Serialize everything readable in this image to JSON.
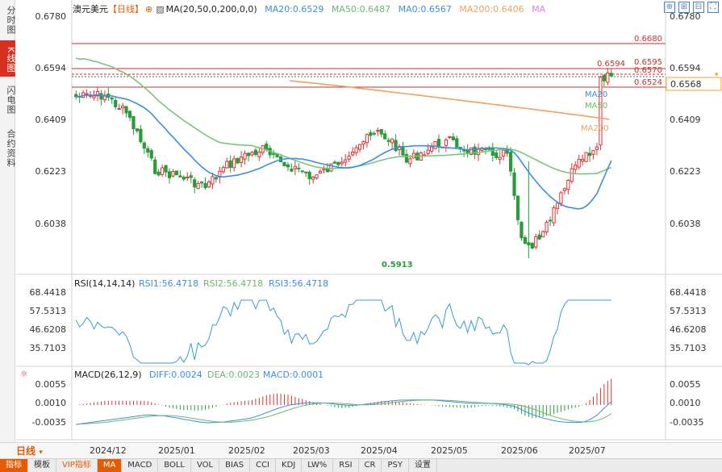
{
  "left_tabs": [
    {
      "label": "分时图"
    },
    {
      "label": "K线图",
      "active": true
    },
    {
      "label": "闪电图"
    },
    {
      "label": "合约资料"
    }
  ],
  "header": {
    "symbol": "澳元美元",
    "period_tag": "【日线】",
    "ma_params": "MA(20,50,0,200,0,0)",
    "ma20": "MA20:0.6529",
    "ma50": "MA50:0.6487",
    "ma0": "MA0:0.6567",
    "ma200": "MA200:0.6406",
    "ma_extra": "MA",
    "colors": {
      "ma20": "#3b8fe0",
      "ma50": "#7cc47c",
      "ma0": "#3b8fe0",
      "ma200": "#f0a060",
      "up": "#d33",
      "down": "#2a9a3a"
    }
  },
  "price_axis": {
    "ticks": [
      "0.6780",
      "0.6594",
      "0.6409",
      "0.6223",
      "0.6038"
    ],
    "current_price": "0.6568"
  },
  "price_annotations": {
    "high_line": "0.6680",
    "level_1": "0.6595",
    "level_2": "0.6594",
    "level_3": "0.6570",
    "level_4": "0.6524",
    "low_label": "0.5913",
    "ma20_tag": "MA20",
    "ma50_tag": "MA50",
    "ma200_tag": "MA200"
  },
  "rsi": {
    "title": "RSI(14,14,14)",
    "rsi1": "RSI1:56.4718",
    "rsi2": "RSI2:56.4718",
    "rsi3": "RSI3:56.4718",
    "ticks": [
      "68.4418",
      "57.5313",
      "46.6208",
      "35.7103"
    ]
  },
  "macd": {
    "title": "MACD(26,12,9)",
    "diff": "DIFF:0.0024",
    "dea": "DEA:0.0023",
    "macd": "MACD:0.0001",
    "ticks": [
      "0.0055",
      "0.0010",
      "-0.0035"
    ]
  },
  "x_axis": {
    "labels": [
      "2024/12",
      "2025/01",
      "2025/02",
      "2025/03",
      "2025/04",
      "2025/05",
      "2025/06",
      "2025/07"
    ]
  },
  "period_bar": {
    "label": "日线"
  },
  "bottom_bar": [
    {
      "label": "指标",
      "active": true
    },
    {
      "label": "模板"
    },
    {
      "label": "VIP指标",
      "vip": true
    },
    {
      "label": "MA",
      "active": true
    },
    {
      "label": "MACD"
    },
    {
      "label": "BOLL"
    },
    {
      "label": "VOL"
    },
    {
      "label": "BIAS"
    },
    {
      "label": "CCI"
    },
    {
      "label": "KDJ"
    },
    {
      "label": "LW%"
    },
    {
      "label": "RSI"
    },
    {
      "label": "CR"
    },
    {
      "label": "PSY"
    },
    {
      "label": "设置"
    }
  ],
  "top_tools": [
    {
      "icon": "crosshair-icon",
      "glyph": "⊕"
    },
    {
      "icon": "zoom-in-icon",
      "glyph": "⊞"
    },
    {
      "icon": "zoom-out-icon",
      "glyph": "⊟"
    },
    {
      "icon": "fullscreen-icon",
      "glyph": "⛶"
    }
  ],
  "settings_icon": "⊕"
}
